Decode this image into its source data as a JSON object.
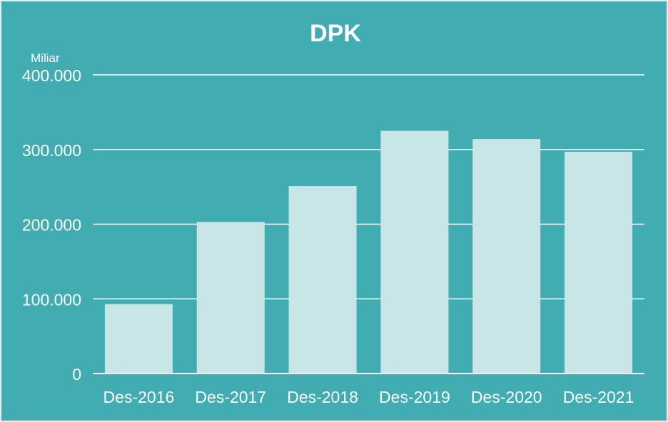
{
  "chart_data": {
    "type": "bar",
    "title": "DPK",
    "unit_label": "Miliar",
    "categories": [
      "Des-2016",
      "Des-2017",
      "Des-2018",
      "Des-2019",
      "Des-2020",
      "Des-2021"
    ],
    "values": [
      93000,
      203000,
      251000,
      325000,
      314000,
      297000
    ],
    "ylim": [
      0,
      400000
    ],
    "yticks": [
      0,
      100000,
      200000,
      300000,
      400000
    ],
    "ytick_labels": [
      "0",
      "100.000",
      "200.000",
      "300.000",
      "400.000"
    ],
    "grid": true,
    "colors": {
      "background": "#41adb2",
      "bar": "#c8e6e8",
      "gridline": "#ffffff",
      "text": "#ffffff"
    }
  }
}
